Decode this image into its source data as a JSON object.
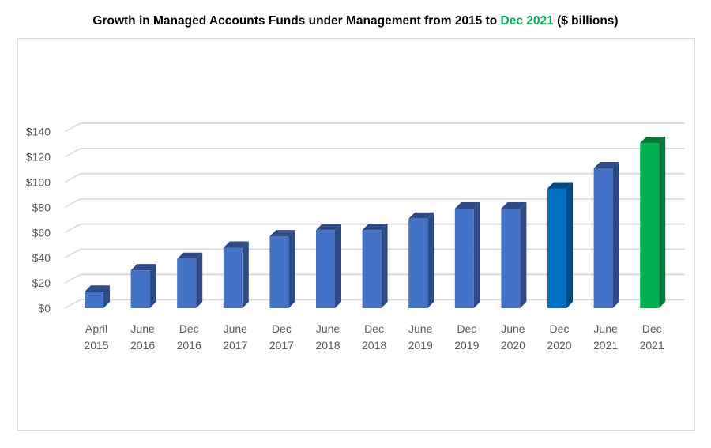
{
  "title": {
    "prefix": "Growth in Managed Accounts Funds under Management from 2015 to ",
    "highlight": "Dec 2021",
    "suffix": " ($ billions)",
    "highlight_color": "#00b050"
  },
  "chart_data": {
    "type": "bar",
    "title": "Growth in Managed Accounts Funds under Management from 2015 to Dec 2021 ($ billions)",
    "categories": [
      [
        "April",
        "2015"
      ],
      [
        "June",
        "2016"
      ],
      [
        "Dec",
        "2016"
      ],
      [
        "June",
        "2017"
      ],
      [
        "Dec",
        "2017"
      ],
      [
        "June",
        "2018"
      ],
      [
        "Dec",
        "2018"
      ],
      [
        "June",
        "2019"
      ],
      [
        "Dec",
        "2019"
      ],
      [
        "June",
        "2020"
      ],
      [
        "Dec",
        "2020"
      ],
      [
        "June",
        "2021"
      ],
      [
        "Dec",
        "2021"
      ]
    ],
    "values": [
      13,
      30,
      39,
      48,
      57,
      62,
      62,
      71,
      79,
      79,
      95,
      111,
      131
    ],
    "colors": [
      "#4472c4",
      "#4472c4",
      "#4472c4",
      "#4472c4",
      "#4472c4",
      "#4472c4",
      "#4472c4",
      "#4472c4",
      "#4472c4",
      "#4472c4",
      "#0070c0",
      "#4472c4",
      "#00b050"
    ],
    "side_colors": [
      "#2f4b86",
      "#2f4b86",
      "#2f4b86",
      "#2f4b86",
      "#2f4b86",
      "#2f4b86",
      "#2f4b86",
      "#2f4b86",
      "#2f4b86",
      "#2f4b86",
      "#004a80",
      "#2f4b86",
      "#007a36"
    ],
    "yticks": [
      "$0",
      "$20",
      "$40",
      "$60",
      "$80",
      "$100",
      "$120",
      "$140"
    ],
    "ylim": [
      0,
      140
    ],
    "xlabel": "",
    "ylabel": "",
    "grid": true
  }
}
